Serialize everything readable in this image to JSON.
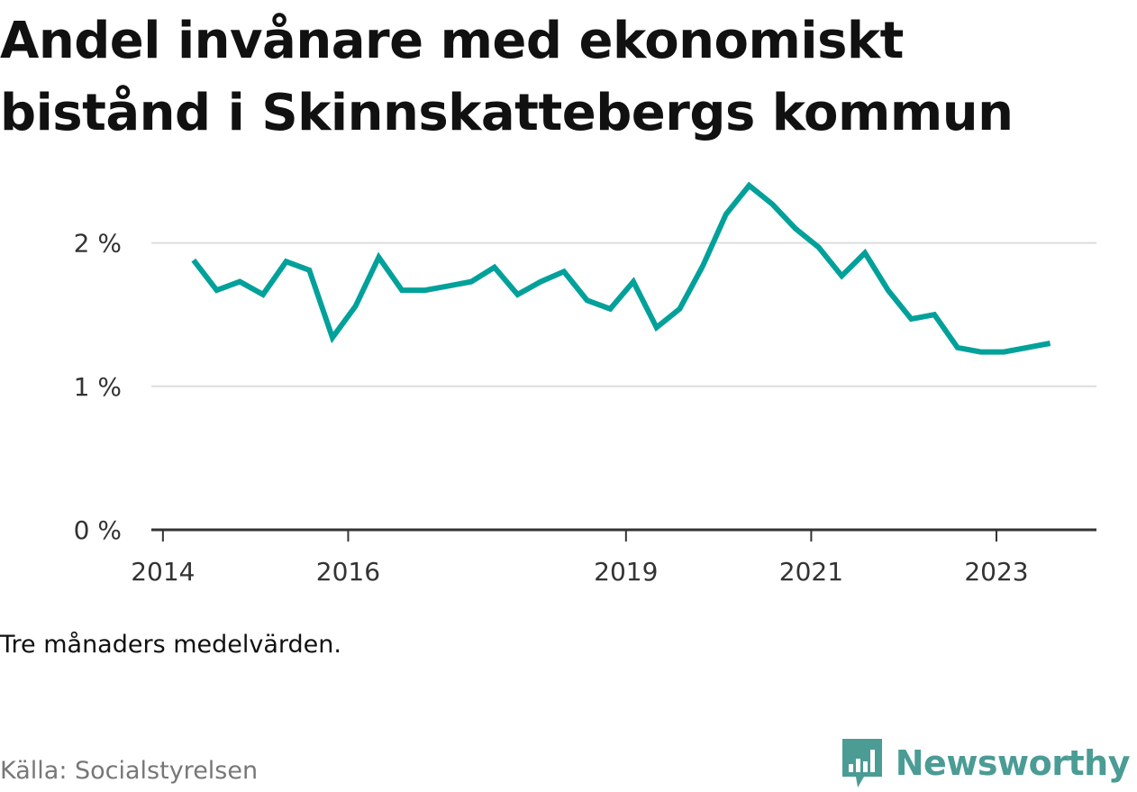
{
  "header": {
    "title_line1": "Andel invånare med ekonomiskt",
    "title_line2": "bistånd i Skinnskattebergs kommun"
  },
  "chart_data": {
    "type": "line",
    "title": "Andel invånare med ekonomiskt bistånd i Skinnskattebergs kommun",
    "xlabel": "",
    "ylabel": "",
    "ylim": [
      0,
      2.5
    ],
    "y_ticks": [
      {
        "value": 0,
        "label": "0 %"
      },
      {
        "value": 1,
        "label": "1 %"
      },
      {
        "value": 2,
        "label": "2 %"
      }
    ],
    "x_ticks": [
      {
        "value": 2014.0,
        "label": "2014"
      },
      {
        "value": 2016.0,
        "label": "2016"
      },
      {
        "value": 2019.0,
        "label": "2019"
      },
      {
        "value": 2021.0,
        "label": "2021"
      },
      {
        "value": 2023.0,
        "label": "2023"
      }
    ],
    "xlim": [
      2013.875,
      2024.08
    ],
    "grid": true,
    "color": "#00a19a",
    "series": [
      {
        "x": [
          2014.33,
          2014.58,
          2014.83,
          2015.08,
          2015.33,
          2015.58,
          2015.83,
          2016.08,
          2016.33,
          2016.58,
          2016.83,
          2017.08,
          2017.33,
          2017.58,
          2017.83,
          2018.08,
          2018.33,
          2018.58,
          2018.83,
          2019.08,
          2019.33,
          2019.58,
          2019.83,
          2020.08,
          2020.33,
          2020.58,
          2020.83,
          2021.08,
          2021.33,
          2021.58,
          2021.83,
          2022.08,
          2022.33,
          2022.58,
          2022.83,
          2023.08,
          2023.33,
          2023.58
        ],
        "values": [
          1.88,
          1.67,
          1.73,
          1.64,
          1.87,
          1.81,
          1.34,
          1.56,
          1.9,
          1.67,
          1.67,
          1.7,
          1.73,
          1.83,
          1.64,
          1.73,
          1.8,
          1.6,
          1.54,
          1.73,
          1.41,
          1.54,
          1.84,
          2.2,
          2.4,
          2.27,
          2.1,
          1.97,
          1.77,
          1.93,
          1.67,
          1.47,
          1.5,
          1.27,
          1.24,
          1.24,
          1.27,
          1.3
        ]
      }
    ]
  },
  "footer": {
    "note": "Tre månaders medelvärden.",
    "source": "Källa: Socialstyrelsen",
    "brand": "Newsworthy",
    "brand_icon": "newsworthy-logo-icon",
    "brand_color": "#4a9c95"
  }
}
